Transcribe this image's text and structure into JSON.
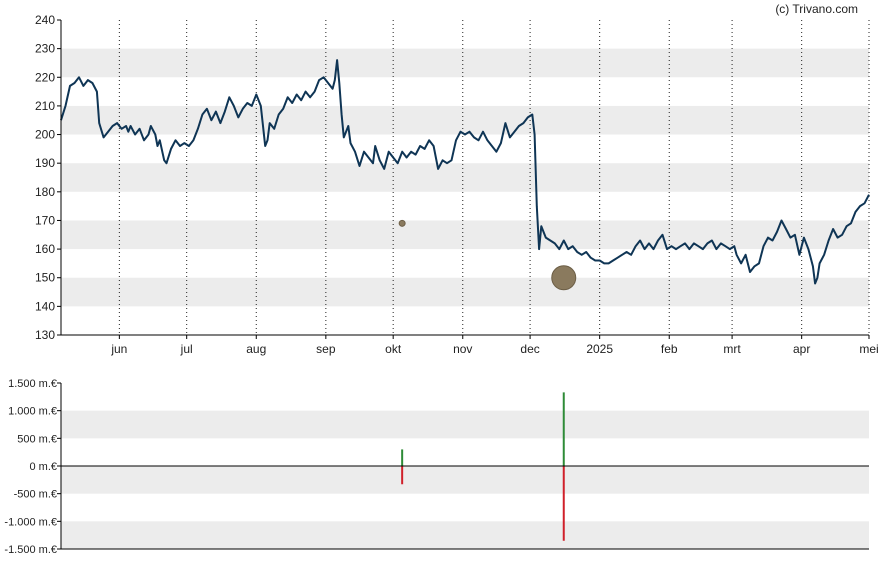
{
  "watermark": "(c) Trivano.com",
  "colors": {
    "price_line": "#0f3555",
    "band": "#ececec",
    "grid_v": "#222222",
    "axis": "#000000",
    "bubble": "#8a7a5e",
    "bubble_stroke": "#6c5e46",
    "volume_pos": "#2e8b37",
    "volume_neg": "#d0202a"
  },
  "chart_data": [
    {
      "type": "line",
      "name": "price",
      "ylim": [
        130,
        240
      ],
      "y_ticks": [
        130,
        140,
        150,
        160,
        170,
        180,
        190,
        200,
        210,
        220,
        230,
        240
      ],
      "y_tick_labels": [
        "130",
        "140",
        "150",
        "160",
        "170",
        "180",
        "190",
        "200",
        "210",
        "220",
        "230",
        "240"
      ],
      "x_range": [
        "2024-05-06",
        "2025-05-01"
      ],
      "x_ticks": [
        {
          "date": "2024-06-01",
          "label": "jun"
        },
        {
          "date": "2024-07-01",
          "label": "jul"
        },
        {
          "date": "2024-08-01",
          "label": "aug"
        },
        {
          "date": "2024-09-01",
          "label": "sep"
        },
        {
          "date": "2024-10-01",
          "label": "okt"
        },
        {
          "date": "2024-11-01",
          "label": "nov"
        },
        {
          "date": "2024-12-01",
          "label": "dec"
        },
        {
          "date": "2025-01-01",
          "label": "2025"
        },
        {
          "date": "2025-02-01",
          "label": "feb"
        },
        {
          "date": "2025-03-01",
          "label": "mrt"
        },
        {
          "date": "2025-04-01",
          "label": "apr"
        },
        {
          "date": "2025-05-01",
          "label": "mei"
        }
      ],
      "grid": true,
      "points": [
        [
          "2024-05-06",
          205
        ],
        [
          "2024-05-08",
          210
        ],
        [
          "2024-05-10",
          217
        ],
        [
          "2024-05-12",
          218
        ],
        [
          "2024-05-14",
          220
        ],
        [
          "2024-05-16",
          217
        ],
        [
          "2024-05-18",
          219
        ],
        [
          "2024-05-20",
          218
        ],
        [
          "2024-05-22",
          215
        ],
        [
          "2024-05-23",
          204
        ],
        [
          "2024-05-25",
          199
        ],
        [
          "2024-05-27",
          201
        ],
        [
          "2024-05-29",
          203
        ],
        [
          "2024-05-31",
          204
        ],
        [
          "2024-06-02",
          202
        ],
        [
          "2024-06-04",
          203
        ],
        [
          "2024-06-05",
          201
        ],
        [
          "2024-06-06",
          203
        ],
        [
          "2024-06-08",
          200
        ],
        [
          "2024-06-10",
          202
        ],
        [
          "2024-06-12",
          198
        ],
        [
          "2024-06-14",
          200
        ],
        [
          "2024-06-15",
          203
        ],
        [
          "2024-06-17",
          200
        ],
        [
          "2024-06-18",
          196
        ],
        [
          "2024-06-19",
          198
        ],
        [
          "2024-06-21",
          191
        ],
        [
          "2024-06-22",
          190
        ],
        [
          "2024-06-24",
          195
        ],
        [
          "2024-06-26",
          198
        ],
        [
          "2024-06-28",
          196
        ],
        [
          "2024-06-30",
          197
        ],
        [
          "2024-07-02",
          196
        ],
        [
          "2024-07-04",
          198
        ],
        [
          "2024-07-06",
          202
        ],
        [
          "2024-07-08",
          207
        ],
        [
          "2024-07-10",
          209
        ],
        [
          "2024-07-12",
          205
        ],
        [
          "2024-07-14",
          208
        ],
        [
          "2024-07-16",
          204
        ],
        [
          "2024-07-18",
          208
        ],
        [
          "2024-07-20",
          213
        ],
        [
          "2024-07-22",
          210
        ],
        [
          "2024-07-24",
          206
        ],
        [
          "2024-07-26",
          209
        ],
        [
          "2024-07-28",
          211
        ],
        [
          "2024-07-30",
          210
        ],
        [
          "2024-08-01",
          214
        ],
        [
          "2024-08-03",
          210
        ],
        [
          "2024-08-05",
          196
        ],
        [
          "2024-08-06",
          198
        ],
        [
          "2024-08-07",
          204
        ],
        [
          "2024-08-09",
          202
        ],
        [
          "2024-08-11",
          207
        ],
        [
          "2024-08-13",
          209
        ],
        [
          "2024-08-15",
          213
        ],
        [
          "2024-08-17",
          211
        ],
        [
          "2024-08-19",
          214
        ],
        [
          "2024-08-21",
          212
        ],
        [
          "2024-08-23",
          215
        ],
        [
          "2024-08-25",
          213
        ],
        [
          "2024-08-27",
          215
        ],
        [
          "2024-08-29",
          219
        ],
        [
          "2024-08-31",
          220
        ],
        [
          "2024-09-02",
          218
        ],
        [
          "2024-09-04",
          216
        ],
        [
          "2024-09-05",
          219
        ],
        [
          "2024-09-06",
          226
        ],
        [
          "2024-09-07",
          218
        ],
        [
          "2024-09-08",
          207
        ],
        [
          "2024-09-09",
          199
        ],
        [
          "2024-09-11",
          203
        ],
        [
          "2024-09-12",
          197
        ],
        [
          "2024-09-14",
          194
        ],
        [
          "2024-09-16",
          189
        ],
        [
          "2024-09-18",
          194
        ],
        [
          "2024-09-20",
          192
        ],
        [
          "2024-09-22",
          190
        ],
        [
          "2024-09-23",
          196
        ],
        [
          "2024-09-25",
          191
        ],
        [
          "2024-09-27",
          188
        ],
        [
          "2024-09-29",
          194
        ],
        [
          "2024-10-01",
          192
        ],
        [
          "2024-10-03",
          190
        ],
        [
          "2024-10-05",
          194
        ],
        [
          "2024-10-07",
          192
        ],
        [
          "2024-10-09",
          194
        ],
        [
          "2024-10-11",
          193
        ],
        [
          "2024-10-13",
          196
        ],
        [
          "2024-10-15",
          195
        ],
        [
          "2024-10-17",
          198
        ],
        [
          "2024-10-19",
          196
        ],
        [
          "2024-10-21",
          188
        ],
        [
          "2024-10-23",
          191
        ],
        [
          "2024-10-25",
          190
        ],
        [
          "2024-10-27",
          191
        ],
        [
          "2024-10-29",
          198
        ],
        [
          "2024-10-31",
          201
        ],
        [
          "2024-11-02",
          200
        ],
        [
          "2024-11-04",
          201
        ],
        [
          "2024-11-06",
          199
        ],
        [
          "2024-11-08",
          198
        ],
        [
          "2024-11-10",
          201
        ],
        [
          "2024-11-12",
          198
        ],
        [
          "2024-11-14",
          196
        ],
        [
          "2024-11-16",
          194
        ],
        [
          "2024-11-18",
          197
        ],
        [
          "2024-11-20",
          204
        ],
        [
          "2024-11-22",
          199
        ],
        [
          "2024-11-24",
          201
        ],
        [
          "2024-11-26",
          203
        ],
        [
          "2024-11-28",
          204
        ],
        [
          "2024-11-30",
          206
        ],
        [
          "2024-12-02",
          207
        ],
        [
          "2024-12-03",
          200
        ],
        [
          "2024-12-04",
          175
        ],
        [
          "2024-12-05",
          160
        ],
        [
          "2024-12-06",
          168
        ],
        [
          "2024-12-08",
          164
        ],
        [
          "2024-12-10",
          163
        ],
        [
          "2024-12-12",
          162
        ],
        [
          "2024-12-14",
          160
        ],
        [
          "2024-12-16",
          163
        ],
        [
          "2024-12-18",
          160
        ],
        [
          "2024-12-20",
          161
        ],
        [
          "2024-12-22",
          159
        ],
        [
          "2024-12-24",
          158
        ],
        [
          "2024-12-26",
          159
        ],
        [
          "2024-12-28",
          157
        ],
        [
          "2024-12-30",
          156
        ],
        [
          "2025-01-01",
          156
        ],
        [
          "2025-01-03",
          155
        ],
        [
          "2025-01-05",
          155
        ],
        [
          "2025-01-07",
          156
        ],
        [
          "2025-01-09",
          157
        ],
        [
          "2025-01-11",
          158
        ],
        [
          "2025-01-13",
          159
        ],
        [
          "2025-01-15",
          158
        ],
        [
          "2025-01-17",
          161
        ],
        [
          "2025-01-19",
          163
        ],
        [
          "2025-01-21",
          160
        ],
        [
          "2025-01-23",
          162
        ],
        [
          "2025-01-25",
          160
        ],
        [
          "2025-01-27",
          163
        ],
        [
          "2025-01-29",
          165
        ],
        [
          "2025-01-31",
          160
        ],
        [
          "2025-02-02",
          161
        ],
        [
          "2025-02-04",
          160
        ],
        [
          "2025-02-06",
          161
        ],
        [
          "2025-02-08",
          162
        ],
        [
          "2025-02-10",
          160
        ],
        [
          "2025-02-12",
          162
        ],
        [
          "2025-02-14",
          161
        ],
        [
          "2025-02-16",
          160
        ],
        [
          "2025-02-18",
          162
        ],
        [
          "2025-02-20",
          163
        ],
        [
          "2025-02-22",
          160
        ],
        [
          "2025-02-24",
          162
        ],
        [
          "2025-02-26",
          161
        ],
        [
          "2025-02-28",
          160
        ],
        [
          "2025-03-02",
          161
        ],
        [
          "2025-03-03",
          158
        ],
        [
          "2025-03-05",
          155
        ],
        [
          "2025-03-07",
          158
        ],
        [
          "2025-03-09",
          152
        ],
        [
          "2025-03-11",
          154
        ],
        [
          "2025-03-13",
          155
        ],
        [
          "2025-03-15",
          161
        ],
        [
          "2025-03-17",
          164
        ],
        [
          "2025-03-19",
          163
        ],
        [
          "2025-03-21",
          166
        ],
        [
          "2025-03-23",
          170
        ],
        [
          "2025-03-25",
          167
        ],
        [
          "2025-03-27",
          164
        ],
        [
          "2025-03-29",
          165
        ],
        [
          "2025-03-31",
          158
        ],
        [
          "2025-04-02",
          164
        ],
        [
          "2025-04-04",
          160
        ],
        [
          "2025-04-06",
          154
        ],
        [
          "2025-04-07",
          148
        ],
        [
          "2025-04-08",
          150
        ],
        [
          "2025-04-09",
          155
        ],
        [
          "2025-04-11",
          158
        ],
        [
          "2025-04-13",
          163
        ],
        [
          "2025-04-15",
          167
        ],
        [
          "2025-04-17",
          164
        ],
        [
          "2025-04-19",
          165
        ],
        [
          "2025-04-21",
          168
        ],
        [
          "2025-04-23",
          169
        ],
        [
          "2025-04-25",
          173
        ],
        [
          "2025-04-27",
          175
        ],
        [
          "2025-04-29",
          176
        ],
        [
          "2025-05-01",
          179
        ]
      ],
      "bubbles": [
        {
          "date": "2024-10-05",
          "value": 169,
          "size": "small"
        },
        {
          "date": "2024-12-16",
          "value": 150,
          "size": "large"
        }
      ]
    },
    {
      "type": "bar",
      "name": "volume",
      "ylim": [
        -1500,
        1500
      ],
      "y_ticks": [
        -1500,
        -1000,
        -500,
        0,
        500,
        1000,
        1500
      ],
      "y_tick_labels": [
        "-1.500 m.€",
        "-1.000 m.€",
        "-500 m.€",
        "0 m.€",
        "500 m.€",
        "1.000 m.€",
        "1.500 m.€"
      ],
      "bars": [
        {
          "date": "2024-10-05",
          "positive": 300,
          "negative": -330
        },
        {
          "date": "2024-12-16",
          "positive": 1330,
          "negative": -1350
        }
      ]
    }
  ]
}
